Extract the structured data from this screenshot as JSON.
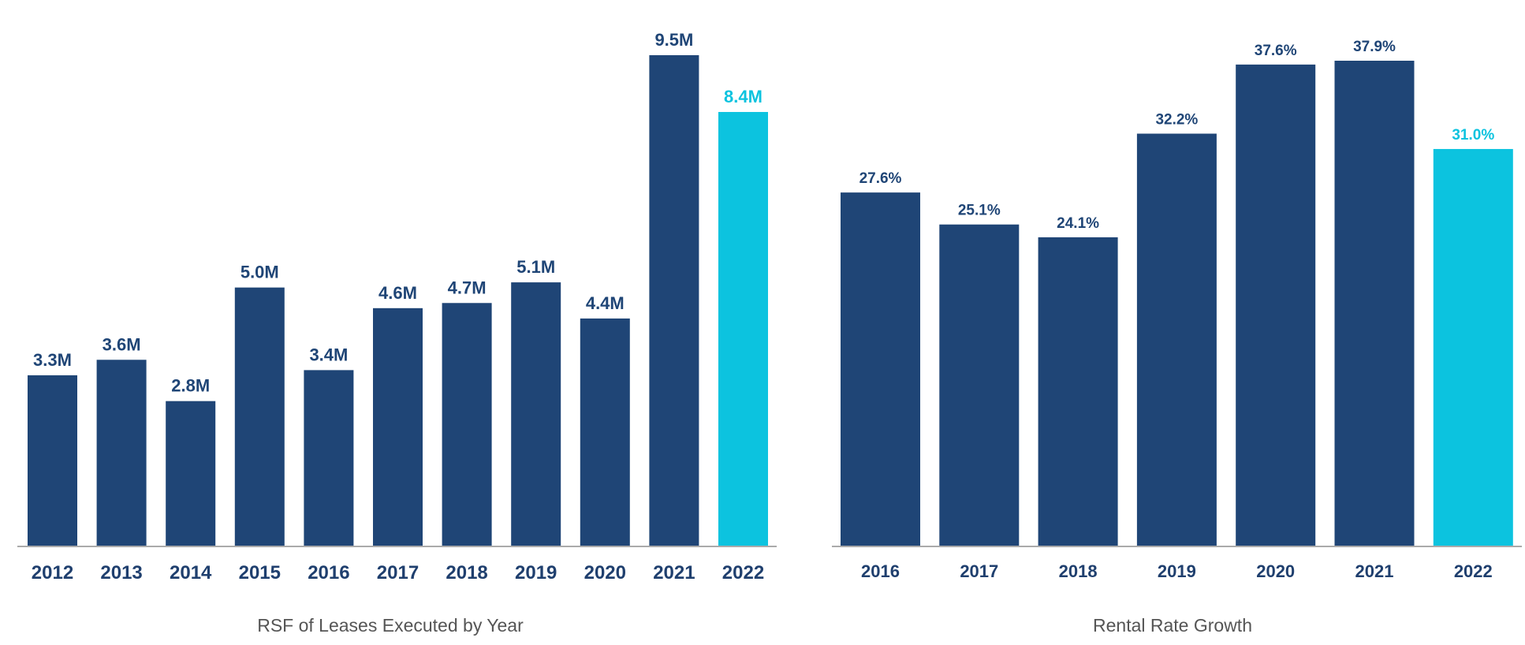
{
  "colors": {
    "primary": "#1f4576",
    "highlight": "#0cc3df",
    "axis": "#aaaaaa",
    "title": "#555555"
  },
  "chart_data": [
    {
      "type": "bar",
      "title": "RSF of Leases Executed by Year",
      "categories": [
        "2012",
        "2013",
        "2014",
        "2015",
        "2016",
        "2017",
        "2018",
        "2019",
        "2020",
        "2021",
        "2022"
      ],
      "values": [
        3.3,
        3.6,
        2.8,
        5.0,
        3.4,
        4.6,
        4.7,
        5.1,
        4.4,
        9.5,
        8.4
      ],
      "value_labels": [
        "3.3M",
        "3.6M",
        "2.8M",
        "5.0M",
        "3.4M",
        "4.6M",
        "4.7M",
        "5.1M",
        "4.4M",
        "9.5M",
        "8.4M"
      ],
      "highlight_category": "2022",
      "ylim": [
        0,
        10
      ],
      "grid": false,
      "xlabel": "",
      "ylabel": ""
    },
    {
      "type": "bar",
      "title": "Rental Rate Growth",
      "categories": [
        "2016",
        "2017",
        "2018",
        "2019",
        "2020",
        "2021",
        "2022"
      ],
      "values": [
        27.6,
        25.1,
        24.1,
        32.2,
        37.6,
        37.9,
        31.0
      ],
      "value_labels": [
        "27.6%",
        "25.1%",
        "24.1%",
        "32.2%",
        "37.6%",
        "37.9%",
        "31.0%"
      ],
      "highlight_category": "2022",
      "ylim": [
        0,
        38.8
      ],
      "grid": false,
      "xlabel": "",
      "ylabel": ""
    }
  ]
}
